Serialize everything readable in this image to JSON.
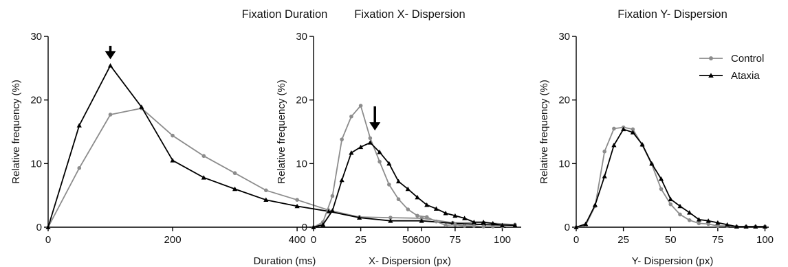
{
  "colors": {
    "control": "#8c8c8c",
    "ataxia": "#000000",
    "axis": "#000000"
  },
  "chart_data": [
    {
      "type": "line",
      "title": "Fixation Duration",
      "xlabel": "Duration (ms)",
      "ylabel": "Relative frequency (%)",
      "xlim": [
        0,
        760
      ],
      "ylim": [
        0,
        30
      ],
      "xticks": [
        0,
        200,
        400,
        600
      ],
      "yticks": [
        0,
        10,
        20,
        30
      ],
      "annotation": {
        "type": "arrow",
        "x": 100,
        "y_top": 28.5,
        "y_bottom": 26.4
      },
      "series": [
        {
          "name": "Control",
          "color_key": "control",
          "marker": "circle",
          "x": [
            0,
            50,
            100,
            150,
            200,
            250,
            300,
            350,
            400,
            450,
            500,
            550,
            600,
            650,
            700,
            750
          ],
          "y": [
            0,
            9.3,
            17.7,
            18.7,
            14.4,
            11.2,
            8.5,
            5.8,
            4.3,
            2.7,
            1.6,
            1.5,
            1.4,
            0.7,
            0.7,
            0.4
          ]
        },
        {
          "name": "Ataxia",
          "color_key": "ataxia",
          "marker": "triangle",
          "x": [
            0,
            50,
            100,
            150,
            200,
            250,
            300,
            350,
            400,
            450,
            500,
            550,
            600,
            650,
            700,
            750
          ],
          "y": [
            0,
            16.0,
            25.4,
            18.9,
            10.5,
            7.8,
            6.0,
            4.3,
            3.3,
            2.5,
            1.5,
            1.0,
            1.0,
            0.6,
            0.4,
            0.3
          ]
        }
      ]
    },
    {
      "type": "line",
      "title": "Fixation X- Dispersion",
      "xlabel": "X- Dispersion (px)",
      "ylabel": "Relative frequency (%)",
      "xlim": [
        0,
        102
      ],
      "ylim": [
        0,
        30
      ],
      "xticks": [
        0,
        25,
        50,
        75,
        100
      ],
      "yticks": [
        0,
        10,
        20,
        30
      ],
      "annotation": {
        "type": "arrow",
        "x": 32.5,
        "y_top": 19.0,
        "y_bottom": 15.2
      },
      "series": [
        {
          "name": "Control",
          "color_key": "control",
          "marker": "circle",
          "x": [
            0,
            5,
            10,
            15,
            20,
            25,
            30,
            35,
            40,
            45,
            50,
            55,
            60,
            65,
            70,
            75,
            80,
            85,
            90,
            95,
            100
          ],
          "y": [
            0,
            0.8,
            4.9,
            13.8,
            17.4,
            19.1,
            14.0,
            10.3,
            6.7,
            4.4,
            2.8,
            1.8,
            1.6,
            0.9,
            0.3,
            0.4,
            0.2,
            0.2,
            0.1,
            0.1,
            0.1
          ]
        },
        {
          "name": "Ataxia",
          "color_key": "ataxia",
          "marker": "triangle",
          "x": [
            0,
            5,
            10,
            15,
            20,
            25,
            30,
            35,
            40,
            45,
            50,
            55,
            60,
            65,
            70,
            75,
            80,
            85,
            90,
            95,
            100
          ],
          "y": [
            0,
            0.4,
            2.6,
            7.4,
            11.7,
            12.6,
            13.3,
            11.8,
            10.0,
            7.2,
            6.0,
            4.7,
            3.5,
            2.9,
            2.2,
            1.8,
            1.4,
            0.8,
            0.8,
            0.6,
            0.3
          ]
        }
      ]
    },
    {
      "type": "line",
      "title": "Fixation Y- Dispersion",
      "xlabel": "Y- Dispersion (px)",
      "ylabel": "Relative frequency (%)",
      "xlim": [
        0,
        102
      ],
      "ylim": [
        0,
        30
      ],
      "xticks": [
        0,
        25,
        50,
        75,
        100
      ],
      "yticks": [
        0,
        10,
        20,
        30
      ],
      "legend": {
        "position": "top-right",
        "entries": [
          "Control",
          "Ataxia"
        ]
      },
      "series": [
        {
          "name": "Control",
          "color_key": "control",
          "marker": "circle",
          "x": [
            0,
            5,
            10,
            15,
            20,
            25,
            30,
            35,
            40,
            45,
            50,
            55,
            60,
            65,
            70,
            75,
            80,
            85,
            90,
            95,
            100
          ],
          "y": [
            0,
            0.3,
            3.3,
            11.9,
            15.5,
            15.7,
            15.4,
            12.9,
            9.9,
            6.0,
            3.6,
            2.0,
            1.1,
            0.6,
            0.5,
            0.2,
            0.2,
            0.1,
            0.1,
            0.1,
            0.1
          ]
        },
        {
          "name": "Ataxia",
          "color_key": "ataxia",
          "marker": "triangle",
          "x": [
            0,
            5,
            10,
            15,
            20,
            25,
            30,
            35,
            40,
            45,
            50,
            55,
            60,
            65,
            70,
            75,
            80,
            85,
            90,
            95,
            100
          ],
          "y": [
            0,
            0.5,
            3.5,
            8.0,
            12.9,
            15.4,
            14.9,
            13.0,
            10.0,
            7.6,
            4.4,
            3.3,
            2.3,
            1.2,
            1.0,
            0.7,
            0.4,
            0.1,
            0.1,
            0.1,
            0.1
          ]
        }
      ]
    }
  ]
}
